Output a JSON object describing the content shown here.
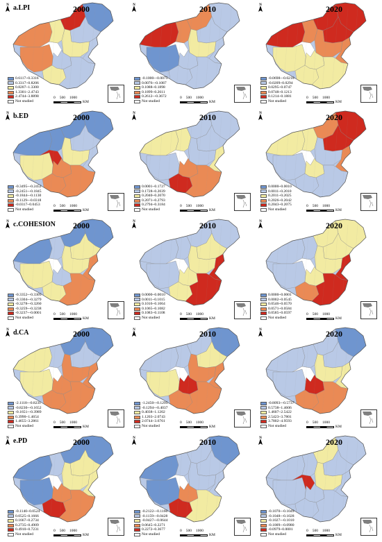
{
  "colors": {
    "c1": "#6f95cf",
    "c2": "#b9c9e6",
    "c3": "#f2eba2",
    "c4": "#ea8a55",
    "c5": "#cf2a1f",
    "not_studied": "#ffffff"
  },
  "icons": {
    "north_arrow": "north-arrow-icon",
    "inset": "south-china-sea-inset"
  },
  "scale_bar": {
    "ticks": [
      "0",
      "500",
      "1000"
    ],
    "unit": "KM"
  },
  "not_studied_label": "Not studied",
  "north_label": "N",
  "rows": [
    {
      "label": "a.LPI",
      "panels": [
        {
          "year": "2000",
          "legend": [
            "0.6117~0.3316",
            "0.3317~0.8206",
            "0.8207~1.3300",
            "1.3301~2.4743",
            "2.4744~3.8898"
          ]
        },
        {
          "year": "2010",
          "legend": [
            "-0.1000~-0.0075",
            "0.0076~-0.1087",
            "0.1088~0.1898",
            "0.1899~0.2611",
            "0.2612~-0.3672"
          ]
        },
        {
          "year": "2020",
          "legend": [
            "-0.0698~-0.0210",
            "-0.0209~0.0294",
            "0.0295~0.0747",
            "0.0748~0.1213",
            "0.1214~0.1881"
          ]
        }
      ]
    },
    {
      "label": "b.ED",
      "panels": [
        {
          "year": "2000",
          "legend": [
            "-0.3495~-0.2452",
            "-0.2451~-0.1845",
            "-0.1844~-0.1130",
            "-0.1129~-0.0318",
            "-0.0317~0.0453"
          ]
        },
        {
          "year": "2010",
          "legend": [
            "0.0001~0.1727",
            "0.1728~0.2039",
            "0.2040~0.2070",
            "0.2071~0.2793",
            "0.2794~0.3184"
          ]
        },
        {
          "year": "2020",
          "legend": [
            "0.0000~0.0010",
            "0.0011~0.2010",
            "0.2011~0.2025",
            "0.2026~0.2042",
            "0.2043~0.2075"
          ]
        }
      ]
    },
    {
      "label": "c.COHESION",
      "panels": [
        {
          "year": "2000",
          "legend": [
            "-0.3352~-0.3305",
            "-0.3304~-0.3279",
            "-0.3278~-0.3260",
            "-0.3259~-0.3238",
            "-0.3237~-0.0001"
          ]
        },
        {
          "year": "2010",
          "legend": [
            "0.0000~0.0010",
            "0.0011~0.1015",
            "0.1016~0.1064",
            "0.1065~0.1082",
            "0.1083~0.1108"
          ]
        },
        {
          "year": "2020",
          "legend": [
            "0.0000~0.0001",
            "0.0002~0.0545",
            "0.0546~0.0570",
            "0.0571~0.0584",
            "0.0585~0.0597"
          ]
        }
      ]
    },
    {
      "label": "d.CA",
      "panels": [
        {
          "year": "2000",
          "legend": [
            "-2.1118~-0.8231",
            "-0.8230~-0.1652",
            "-0.1651~-0.3989",
            "0.3990~1.4654",
            "1.4655~3.2861"
          ]
        },
        {
          "year": "2010",
          "legend": [
            "-1.2450~-0.1295",
            "-0.1294~-0.4037",
            "0.4038~1.1202",
            "1.1203~2.0743",
            "2.0744~3.6761"
          ]
        },
        {
          "year": "2020",
          "legend": [
            "-0.8093~-0.5737",
            "0.5738~1.4606",
            "1.4607~2.5422",
            "2.5423~3.7801",
            "3.7802~4.9593"
          ]
        }
      ]
    },
    {
      "label": "e.PD",
      "panels": [
        {
          "year": "2000",
          "legend": [
            "-0.1140~0.0524",
            "0.0525~0.1666",
            "0.1667~0.2734",
            "0.2735~0.4909",
            "0.4910~0.7231"
          ]
        },
        {
          "year": "2010",
          "legend": [
            "-0.2122~-0.1160",
            "-0.1159~-0.0428",
            "-0.0427~-0.0644",
            "0.0645~0.2271",
            "0.2272~0.3677"
          ]
        },
        {
          "year": "2020",
          "legend": [
            "-0.1070~-0.1049",
            "-0.1048~-0.1028",
            "-0.1027~-0.1010",
            "-0.1009~-0.0980",
            "-0.0979~0.0001"
          ]
        }
      ]
    }
  ]
}
